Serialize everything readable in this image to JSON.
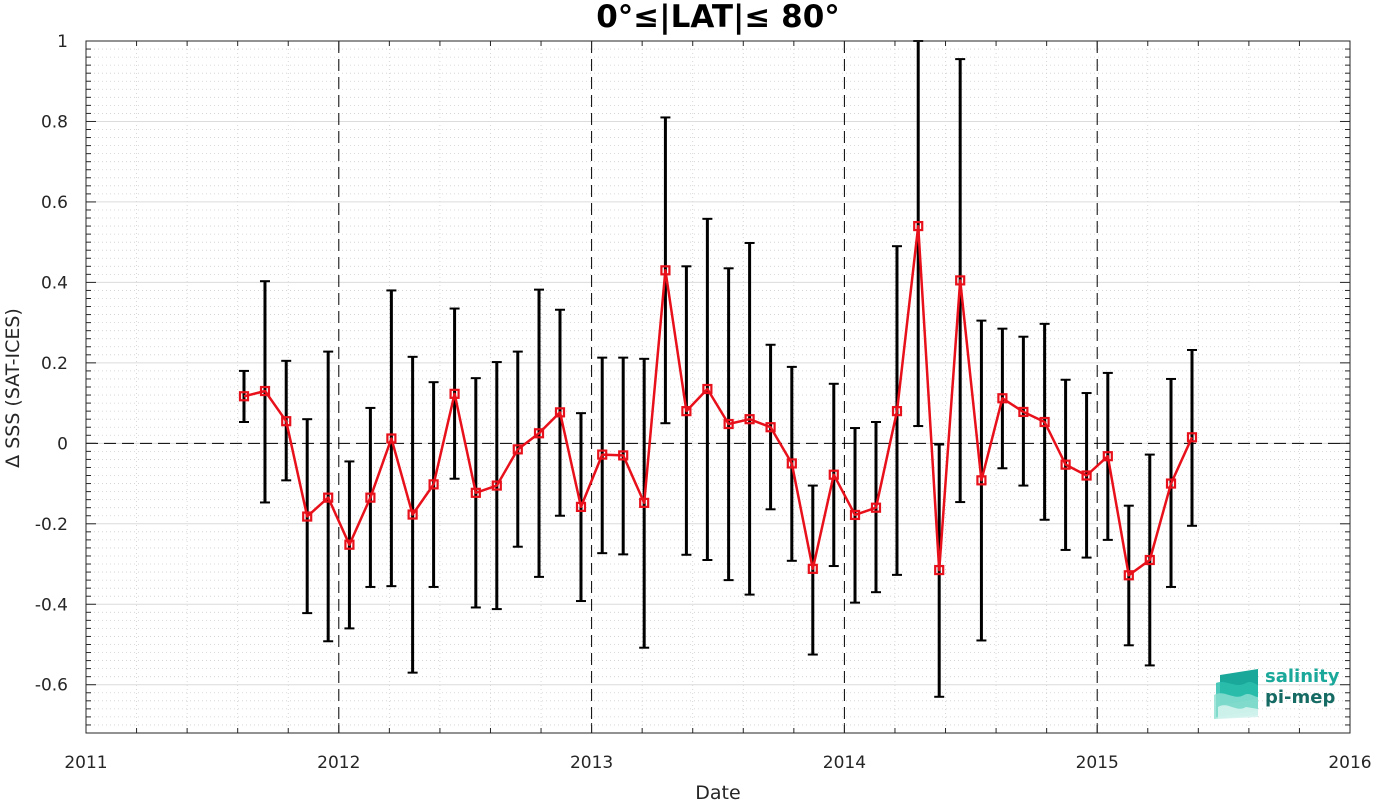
{
  "chart_data": {
    "type": "line",
    "title": "0°≤|LAT|≤ 80°",
    "xlabel": "Date",
    "ylabel": "Δ SSS (SAT-ICES)",
    "xlim": [
      2011,
      2016
    ],
    "ylim": [
      -0.72,
      1.0
    ],
    "x_ticks": [
      "2011",
      "2012",
      "2013",
      "2014",
      "2015",
      "2016"
    ],
    "y_ticks": [
      "1",
      "0.8",
      "0.6",
      "0.4",
      "0.2",
      "0",
      "-0.2",
      "-0.4",
      "-0.6"
    ],
    "grid": true,
    "series": [
      {
        "color": "#e8101a",
        "marker": "square",
        "error_bar_color": "#000000",
        "x": [
          2011.625,
          2011.708,
          2011.792,
          2011.875,
          2011.958,
          2012.042,
          2012.125,
          2012.208,
          2012.292,
          2012.375,
          2012.458,
          2012.542,
          2012.625,
          2012.708,
          2012.792,
          2012.875,
          2012.958,
          2013.042,
          2013.125,
          2013.208,
          2013.292,
          2013.375,
          2013.458,
          2013.542,
          2013.625,
          2013.708,
          2013.792,
          2013.875,
          2013.958,
          2014.042,
          2014.125,
          2014.208,
          2014.292,
          2014.375,
          2014.458,
          2014.542,
          2014.625,
          2014.708,
          2014.792,
          2014.875,
          2014.958,
          2015.042,
          2015.125,
          2015.208,
          2015.292,
          2015.375
        ],
        "y": [
          0.117,
          0.13,
          0.055,
          -0.182,
          -0.135,
          -0.252,
          -0.135,
          0.012,
          -0.177,
          -0.102,
          0.123,
          -0.123,
          -0.105,
          -0.015,
          0.025,
          0.077,
          -0.158,
          -0.028,
          -0.03,
          -0.148,
          0.43,
          0.08,
          0.135,
          0.048,
          0.06,
          0.04,
          -0.05,
          -0.312,
          -0.078,
          -0.178,
          -0.16,
          0.08,
          0.54,
          -0.315,
          0.405,
          -0.092,
          0.112,
          0.078,
          0.053,
          -0.053,
          -0.08,
          -0.032,
          -0.328,
          -0.29,
          -0.1,
          0.015
        ],
        "y_low": [
          0.053,
          -0.147,
          -0.092,
          -0.422,
          -0.492,
          -0.46,
          -0.357,
          -0.355,
          -0.57,
          -0.357,
          -0.088,
          -0.408,
          -0.412,
          -0.257,
          -0.332,
          -0.18,
          -0.392,
          -0.273,
          -0.276,
          -0.508,
          0.05,
          -0.277,
          -0.29,
          -0.34,
          -0.376,
          -0.164,
          -0.292,
          -0.525,
          -0.305,
          -0.396,
          -0.37,
          -0.327,
          0.043,
          -0.63,
          -0.146,
          -0.49,
          -0.062,
          -0.105,
          -0.19,
          -0.265,
          -0.284,
          -0.24,
          -0.502,
          -0.552,
          -0.357,
          -0.205
        ],
        "y_high": [
          0.18,
          0.403,
          0.205,
          0.06,
          0.228,
          -0.045,
          0.088,
          0.38,
          0.215,
          0.152,
          0.335,
          0.162,
          0.202,
          0.228,
          0.382,
          0.332,
          0.075,
          0.213,
          0.213,
          0.21,
          0.81,
          0.44,
          0.558,
          0.435,
          0.498,
          0.245,
          0.19,
          -0.105,
          0.148,
          0.038,
          0.053,
          0.49,
          1.0,
          -0.003,
          0.955,
          0.305,
          0.285,
          0.265,
          0.297,
          0.158,
          0.125,
          0.175,
          -0.155,
          -0.028,
          0.16,
          0.232
        ]
      }
    ]
  },
  "logo": {
    "line1": "salinity",
    "line2": "pi-mep",
    "color_teal": "#1aa89a",
    "color_dark": "#156b63"
  }
}
